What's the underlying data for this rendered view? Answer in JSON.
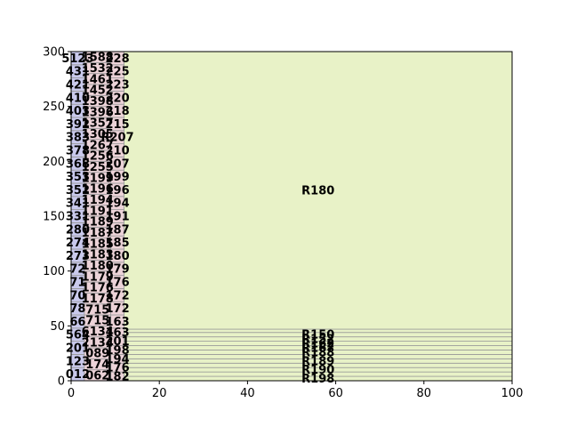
{
  "chart_data": {
    "type": "treemap",
    "xlim": [
      0,
      100
    ],
    "ylim": [
      0,
      300
    ],
    "x_ticks": [
      "0",
      "20",
      "40",
      "60",
      "80",
      "100"
    ],
    "y_ticks": [
      "0",
      "50",
      "100",
      "150",
      "200",
      "250",
      "300"
    ],
    "colors": {
      "col1": "#c9c9ec",
      "col2": "#ecd3d8",
      "col3": "#e8f2c7",
      "edge": "#999999"
    },
    "columns": [
      {
        "color_key": "col1",
        "x0": 0,
        "x1": 3,
        "label_x": 1.5,
        "rects": [
          {
            "y0": 0,
            "y1": 12,
            "label": "012"
          },
          {
            "y0": 12,
            "y1": 24,
            "label": "123"
          },
          {
            "y0": 24,
            "y1": 36,
            "label": "201"
          },
          {
            "y0": 36,
            "y1": 48,
            "label": "564"
          },
          {
            "y0": 48,
            "y1": 60,
            "label": "66"
          },
          {
            "y0": 60,
            "y1": 72,
            "label": "78"
          },
          {
            "y0": 72,
            "y1": 84,
            "label": "70"
          },
          {
            "y0": 84,
            "y1": 96,
            "label": "71"
          },
          {
            "y0": 96,
            "y1": 108,
            "label": "72"
          },
          {
            "y0": 108,
            "y1": 120,
            "label": "273"
          },
          {
            "y0": 120,
            "y1": 132,
            "label": "274"
          },
          {
            "y0": 132,
            "y1": 144,
            "label": "280"
          },
          {
            "y0": 144,
            "y1": 156,
            "label": "331"
          },
          {
            "y0": 156,
            "y1": 168,
            "label": "341"
          },
          {
            "y0": 168,
            "y1": 180,
            "label": "352"
          },
          {
            "y0": 180,
            "y1": 192,
            "label": "353"
          },
          {
            "y0": 192,
            "y1": 204,
            "label": "368"
          },
          {
            "y0": 204,
            "y1": 216,
            "label": "378"
          },
          {
            "y0": 216,
            "y1": 228,
            "label": "383"
          },
          {
            "y0": 228,
            "y1": 240,
            "label": "392"
          },
          {
            "y0": 240,
            "y1": 252,
            "label": "403"
          },
          {
            "y0": 252,
            "y1": 264,
            "label": "410"
          },
          {
            "y0": 264,
            "y1": 276,
            "label": "421"
          },
          {
            "y0": 276,
            "y1": 288,
            "label": "431"
          },
          {
            "y0": 288,
            "y1": 300,
            "label": "5123"
          }
        ]
      },
      {
        "color_key": "col2",
        "x0": 3,
        "x1": 9,
        "label_x": 6,
        "rects": [
          {
            "y0": 0,
            "y1": 10,
            "label": "062"
          },
          {
            "y0": 10,
            "y1": 20,
            "label": "174"
          },
          {
            "y0": 20,
            "y1": 30,
            "label": "089"
          },
          {
            "y0": 30,
            "y1": 40,
            "label": "2134"
          },
          {
            "y0": 40,
            "y1": 50,
            "label": "6134"
          },
          {
            "y0": 50,
            "y1": 60,
            "label": "715"
          },
          {
            "y0": 60,
            "y1": 70,
            "label": "715"
          },
          {
            "y0": 70,
            "y1": 80,
            "label": "1178"
          },
          {
            "y0": 80,
            "y1": 90,
            "label": "1176"
          },
          {
            "y0": 90,
            "y1": 100,
            "label": "1179"
          },
          {
            "y0": 100,
            "y1": 110,
            "label": "1180"
          },
          {
            "y0": 110,
            "y1": 120,
            "label": "1183"
          },
          {
            "y0": 120,
            "y1": 130,
            "label": "1185"
          },
          {
            "y0": 130,
            "y1": 140,
            "label": "1187"
          },
          {
            "y0": 140,
            "y1": 150,
            "label": "1189"
          },
          {
            "y0": 150,
            "y1": 160,
            "label": "1191"
          },
          {
            "y0": 160,
            "y1": 170,
            "label": "1194"
          },
          {
            "y0": 170,
            "y1": 180,
            "label": "1196"
          },
          {
            "y0": 180,
            "y1": 190,
            "label": "1199"
          },
          {
            "y0": 190,
            "y1": 200,
            "label": "1255"
          },
          {
            "y0": 200,
            "y1": 210,
            "label": "1256"
          },
          {
            "y0": 210,
            "y1": 220,
            "label": "1267"
          },
          {
            "y0": 220,
            "y1": 230,
            "label": "1305"
          },
          {
            "y0": 230,
            "y1": 240,
            "label": "1357"
          },
          {
            "y0": 240,
            "y1": 250,
            "label": "1396"
          },
          {
            "y0": 250,
            "y1": 260,
            "label": "1398"
          },
          {
            "y0": 260,
            "y1": 270,
            "label": "1452"
          },
          {
            "y0": 270,
            "y1": 280,
            "label": "1461"
          },
          {
            "y0": 280,
            "y1": 290,
            "label": "1532"
          },
          {
            "y0": 290,
            "y1": 300,
            "label": "1588"
          }
        ]
      },
      {
        "color_key": "col2",
        "x0": 9,
        "x1": 12,
        "label_x": 10.5,
        "rects": [
          {
            "y0": 0,
            "y1": 8,
            "label": "182"
          },
          {
            "y0": 8,
            "y1": 16,
            "label": "176"
          },
          {
            "y0": 16,
            "y1": 24,
            "label": "194"
          },
          {
            "y0": 24,
            "y1": 32,
            "label": "198"
          },
          {
            "y0": 32,
            "y1": 40,
            "label": "201"
          },
          {
            "y0": 40,
            "y1": 48,
            "label": "163"
          },
          {
            "y0": 48,
            "y1": 60,
            "label": "163"
          },
          {
            "y0": 60,
            "y1": 72,
            "label": "172"
          },
          {
            "y0": 72,
            "y1": 84,
            "label": "172"
          },
          {
            "y0": 84,
            "y1": 96,
            "label": "176"
          },
          {
            "y0": 96,
            "y1": 108,
            "label": "179"
          },
          {
            "y0": 108,
            "y1": 120,
            "label": "180"
          },
          {
            "y0": 120,
            "y1": 132,
            "label": "185"
          },
          {
            "y0": 132,
            "y1": 144,
            "label": "187"
          },
          {
            "y0": 144,
            "y1": 156,
            "label": "191"
          },
          {
            "y0": 156,
            "y1": 168,
            "label": "194"
          },
          {
            "y0": 168,
            "y1": 180,
            "label": "196"
          },
          {
            "y0": 180,
            "y1": 192,
            "label": "199"
          },
          {
            "y0": 192,
            "y1": 204,
            "label": "207"
          },
          {
            "y0": 204,
            "y1": 216,
            "label": "210"
          },
          {
            "y0": 216,
            "y1": 228,
            "label": "R207"
          },
          {
            "y0": 228,
            "y1": 240,
            "label": "215"
          },
          {
            "y0": 240,
            "y1": 252,
            "label": "218"
          },
          {
            "y0": 252,
            "y1": 264,
            "label": "220"
          },
          {
            "y0": 264,
            "y1": 276,
            "label": "223"
          },
          {
            "y0": 276,
            "y1": 288,
            "label": "225"
          },
          {
            "y0": 288,
            "y1": 300,
            "label": "228"
          }
        ]
      },
      {
        "color_key": "col3",
        "x0": 12,
        "x1": 100,
        "label_x": 56,
        "rects": [
          {
            "y0": 0,
            "y1": 4,
            "label": "R198"
          },
          {
            "y0": 4,
            "y1": 8,
            "label": ""
          },
          {
            "y0": 8,
            "y1": 12,
            "label": "R190"
          },
          {
            "y0": 12,
            "y1": 16,
            "label": ""
          },
          {
            "y0": 16,
            "y1": 20,
            "label": "R189"
          },
          {
            "y0": 20,
            "y1": 24,
            "label": ""
          },
          {
            "y0": 24,
            "y1": 28,
            "label": "R188"
          },
          {
            "y0": 28,
            "y1": 32,
            "label": "R167"
          },
          {
            "y0": 32,
            "y1": 36,
            "label": "R162"
          },
          {
            "y0": 36,
            "y1": 40,
            "label": "R152"
          },
          {
            "y0": 40,
            "y1": 44,
            "label": "R150"
          },
          {
            "y0": 44,
            "y1": 47,
            "label": ""
          },
          {
            "y0": 47,
            "y1": 300,
            "label": "R180"
          }
        ]
      }
    ]
  }
}
